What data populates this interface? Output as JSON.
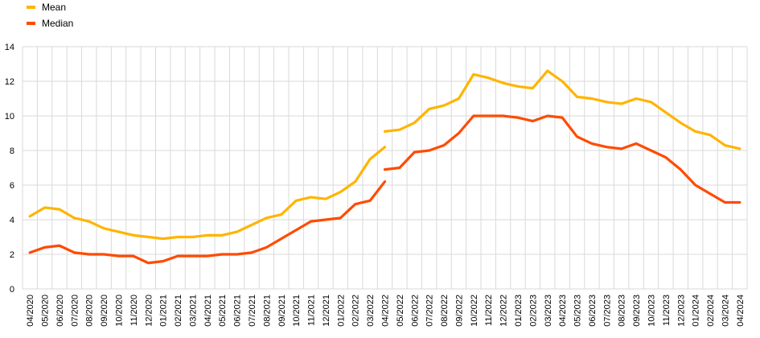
{
  "chart_data": {
    "type": "line",
    "title": "",
    "xlabel": "",
    "ylabel": "",
    "ylim": [
      0,
      14
    ],
    "yticks": [
      0,
      2,
      4,
      6,
      8,
      10,
      12,
      14
    ],
    "grid": true,
    "legend_position": "top-left",
    "x": [
      "04/2020",
      "05/2020",
      "06/2020",
      "07/2020",
      "08/2020",
      "09/2020",
      "10/2020",
      "11/2020",
      "12/2020",
      "01/2021",
      "02/2021",
      "03/2021",
      "04/2021",
      "05/2021",
      "06/2021",
      "07/2021",
      "08/2021",
      "09/2021",
      "10/2021",
      "11/2021",
      "12/2021",
      "01/2022",
      "02/2022",
      "03/2022",
      "04/2022",
      "05/2022",
      "06/2022",
      "07/2022",
      "08/2022",
      "09/2022",
      "10/2022",
      "11/2022",
      "12/2022",
      "01/2023",
      "02/2023",
      "03/2023",
      "04/2023",
      "05/2023",
      "06/2023",
      "07/2023",
      "08/2023",
      "09/2023",
      "10/2023",
      "11/2023",
      "12/2023",
      "01/2024",
      "02/2024",
      "03/2024",
      "04/2024"
    ],
    "series": [
      {
        "name": "Mean",
        "color": "#FFB400",
        "segments": [
          {
            "x_start_index": 0,
            "values": [
              4.2,
              4.7,
              4.6,
              4.1,
              3.9,
              3.5,
              3.3,
              3.1,
              3.0,
              2.9,
              3.0,
              3.0,
              3.1,
              3.1,
              3.3,
              3.7,
              4.1,
              4.3,
              5.1,
              5.3,
              5.2,
              5.6,
              6.2,
              7.5,
              8.2
            ]
          },
          {
            "x_start_index": 24,
            "values": [
              9.1,
              9.2,
              9.6,
              10.4,
              10.6,
              11.0,
              12.4,
              12.2,
              11.9,
              11.7,
              11.6,
              12.6,
              12.0,
              11.1,
              11.0,
              10.8,
              10.7,
              11.0,
              10.8,
              10.2,
              9.6,
              9.1,
              8.9,
              8.3,
              8.1
            ]
          }
        ]
      },
      {
        "name": "Median",
        "color": "#FF4B00",
        "segments": [
          {
            "x_start_index": 0,
            "values": [
              2.1,
              2.4,
              2.5,
              2.1,
              2.0,
              2.0,
              1.9,
              1.9,
              1.5,
              1.6,
              1.9,
              1.9,
              1.9,
              2.0,
              2.0,
              2.1,
              2.4,
              2.9,
              3.4,
              3.9,
              4.0,
              4.1,
              4.9,
              5.1,
              6.2
            ]
          },
          {
            "x_start_index": 24,
            "values": [
              6.9,
              7.0,
              7.9,
              8.0,
              8.3,
              9.0,
              10.0,
              10.0,
              10.0,
              9.9,
              9.7,
              10.0,
              9.9,
              8.8,
              8.4,
              8.2,
              8.1,
              8.4,
              8.0,
              7.6,
              6.9,
              6.0,
              5.5,
              5.0,
              5.0
            ]
          }
        ]
      }
    ]
  }
}
